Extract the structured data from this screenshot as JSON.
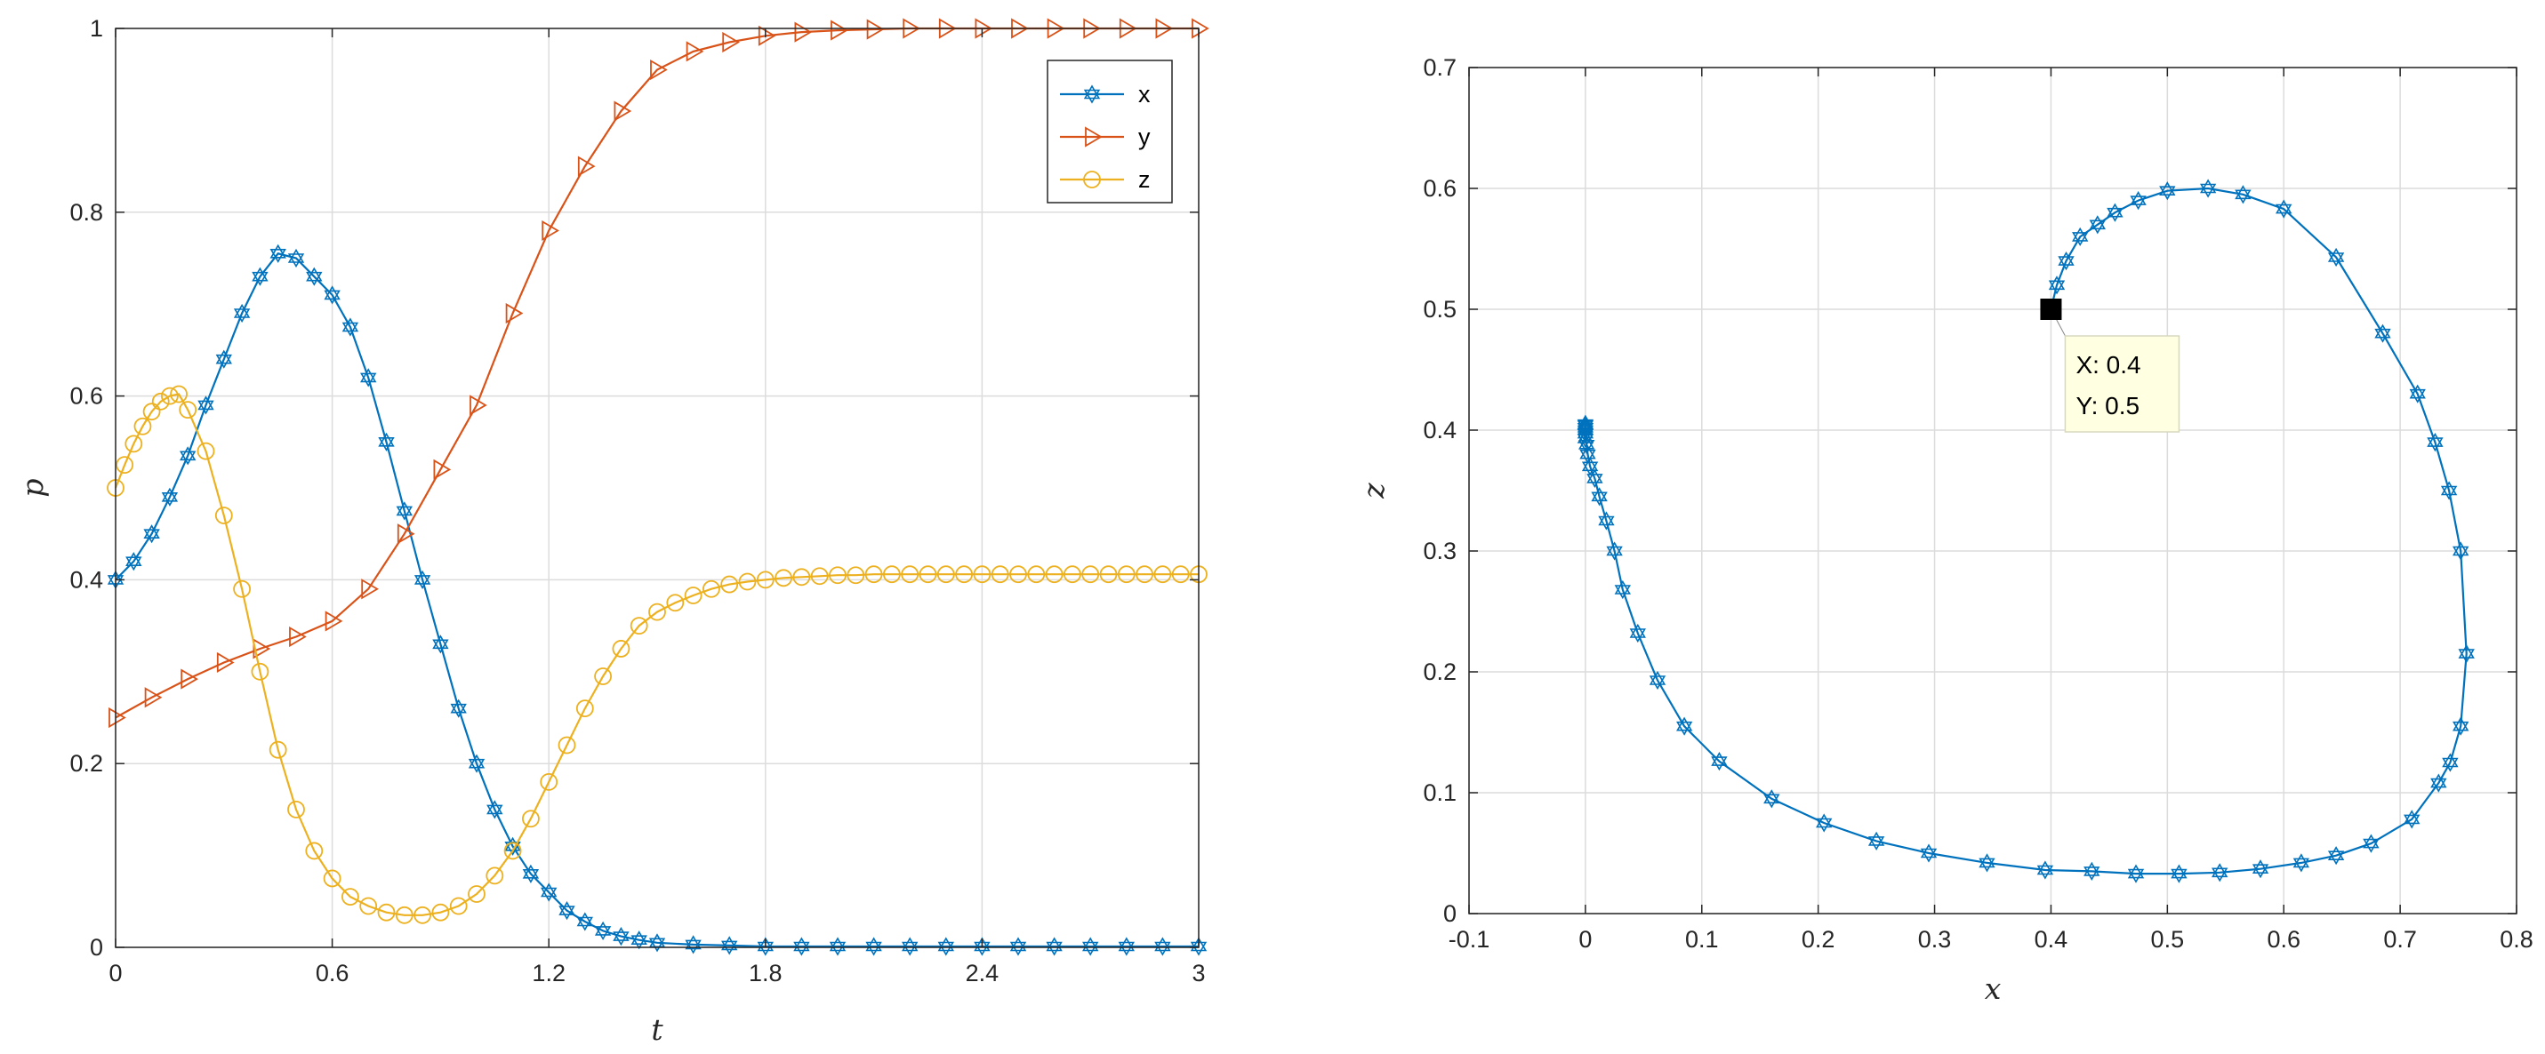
{
  "chart_data": [
    {
      "type": "line",
      "xlabel": "t",
      "ylabel": "p",
      "xlim": [
        0,
        3
      ],
      "ylim": [
        0,
        1
      ],
      "xticks": [
        "0",
        "0.6",
        "1.2",
        "1.8",
        "2.4",
        "3"
      ],
      "yticks": [
        "0",
        "0.2",
        "0.4",
        "0.6",
        "0.8",
        "1"
      ],
      "grid": true,
      "legend_position": "top-right",
      "series": [
        {
          "name": "x",
          "color": "#0072BD",
          "marker": "hexagram",
          "x": [
            0,
            0.05,
            0.1,
            0.15,
            0.2,
            0.25,
            0.3,
            0.35,
            0.4,
            0.45,
            0.5,
            0.55,
            0.6,
            0.65,
            0.7,
            0.75,
            0.8,
            0.85,
            0.9,
            0.95,
            1.0,
            1.05,
            1.1,
            1.15,
            1.2,
            1.25,
            1.3,
            1.35,
            1.4,
            1.45,
            1.5,
            1.6,
            1.7,
            1.8,
            1.9,
            2.0,
            2.1,
            2.2,
            2.3,
            2.4,
            2.5,
            2.6,
            2.7,
            2.8,
            2.9,
            3.0
          ],
          "values": [
            0.4,
            0.42,
            0.45,
            0.49,
            0.535,
            0.59,
            0.64,
            0.69,
            0.73,
            0.755,
            0.75,
            0.73,
            0.71,
            0.675,
            0.62,
            0.55,
            0.475,
            0.4,
            0.33,
            0.26,
            0.2,
            0.15,
            0.11,
            0.08,
            0.06,
            0.04,
            0.028,
            0.018,
            0.012,
            0.008,
            0.005,
            0.003,
            0.002,
            0.001,
            0.001,
            0.001,
            0.001,
            0.001,
            0.001,
            0.001,
            0.001,
            0.001,
            0.001,
            0.001,
            0.001,
            0.001
          ]
        },
        {
          "name": "y",
          "color": "#D95319",
          "marker": "triangle-right",
          "x": [
            0,
            0.1,
            0.2,
            0.3,
            0.4,
            0.5,
            0.6,
            0.7,
            0.8,
            0.9,
            1.0,
            1.1,
            1.2,
            1.3,
            1.4,
            1.5,
            1.6,
            1.7,
            1.8,
            1.9,
            2.0,
            2.1,
            2.2,
            2.3,
            2.4,
            2.5,
            2.6,
            2.7,
            2.8,
            2.9,
            3.0
          ],
          "values": [
            0.25,
            0.272,
            0.292,
            0.31,
            0.325,
            0.338,
            0.355,
            0.39,
            0.45,
            0.52,
            0.59,
            0.69,
            0.78,
            0.85,
            0.91,
            0.955,
            0.975,
            0.985,
            0.992,
            0.996,
            0.998,
            0.999,
            1.0,
            1.0,
            1.0,
            1.0,
            1.0,
            1.0,
            1.0,
            1.0,
            1.0
          ]
        },
        {
          "name": "z",
          "color": "#EDB120",
          "marker": "circle",
          "x": [
            0,
            0.025,
            0.05,
            0.075,
            0.1,
            0.125,
            0.15,
            0.175,
            0.2,
            0.25,
            0.3,
            0.35,
            0.4,
            0.45,
            0.5,
            0.55,
            0.6,
            0.65,
            0.7,
            0.75,
            0.8,
            0.85,
            0.9,
            0.95,
            1.0,
            1.05,
            1.1,
            1.15,
            1.2,
            1.25,
            1.3,
            1.35,
            1.4,
            1.45,
            1.5,
            1.55,
            1.6,
            1.65,
            1.7,
            1.75,
            1.8,
            1.85,
            1.9,
            1.95,
            2.0,
            2.05,
            2.1,
            2.15,
            2.2,
            2.25,
            2.3,
            2.35,
            2.4,
            2.45,
            2.5,
            2.55,
            2.6,
            2.65,
            2.7,
            2.75,
            2.8,
            2.85,
            2.9,
            2.95,
            3.0
          ],
          "values": [
            0.5,
            0.525,
            0.548,
            0.567,
            0.583,
            0.594,
            0.6,
            0.602,
            0.585,
            0.54,
            0.47,
            0.39,
            0.3,
            0.215,
            0.15,
            0.105,
            0.075,
            0.055,
            0.045,
            0.038,
            0.035,
            0.035,
            0.038,
            0.045,
            0.058,
            0.078,
            0.105,
            0.14,
            0.18,
            0.22,
            0.26,
            0.295,
            0.325,
            0.35,
            0.365,
            0.375,
            0.383,
            0.39,
            0.395,
            0.398,
            0.4,
            0.402,
            0.403,
            0.404,
            0.405,
            0.405,
            0.406,
            0.406,
            0.406,
            0.406,
            0.406,
            0.406,
            0.406,
            0.406,
            0.406,
            0.406,
            0.406,
            0.406,
            0.406,
            0.406,
            0.406,
            0.406,
            0.406,
            0.406,
            0.406
          ]
        }
      ]
    },
    {
      "type": "line",
      "xlabel": "x",
      "ylabel": "z",
      "xlim": [
        -0.1,
        0.8
      ],
      "ylim": [
        0,
        0.7
      ],
      "xticks": [
        "-0.1",
        "0",
        "0.1",
        "0.2",
        "0.3",
        "0.4",
        "0.5",
        "0.6",
        "0.7",
        "0.8"
      ],
      "yticks": [
        "0",
        "0.1",
        "0.2",
        "0.3",
        "0.4",
        "0.5",
        "0.6",
        "0.7"
      ],
      "grid": true,
      "series": [
        {
          "color": "#0072BD",
          "marker": "hexagram",
          "x": [
            0.4,
            0.405,
            0.413,
            0.425,
            0.44,
            0.455,
            0.475,
            0.5,
            0.535,
            0.565,
            0.6,
            0.645,
            0.685,
            0.715,
            0.73,
            0.742,
            0.752,
            0.757,
            0.752,
            0.743,
            0.733,
            0.71,
            0.675,
            0.645,
            0.615,
            0.58,
            0.545,
            0.51,
            0.473,
            0.435,
            0.395,
            0.345,
            0.295,
            0.25,
            0.205,
            0.16,
            0.115,
            0.085,
            0.062,
            0.045,
            0.032,
            0.025,
            0.018,
            0.012,
            0.008,
            0.004,
            0.002,
            0.001,
            0.0,
            0.0,
            0.0,
            0.0,
            0.0,
            0.0
          ],
          "values": [
            0.5,
            0.52,
            0.54,
            0.56,
            0.57,
            0.58,
            0.59,
            0.598,
            0.6,
            0.595,
            0.583,
            0.543,
            0.48,
            0.43,
            0.39,
            0.35,
            0.3,
            0.215,
            0.155,
            0.125,
            0.108,
            0.078,
            0.058,
            0.048,
            0.042,
            0.037,
            0.034,
            0.033,
            0.033,
            0.035,
            0.036,
            0.042,
            0.05,
            0.06,
            0.075,
            0.095,
            0.126,
            0.155,
            0.193,
            0.232,
            0.268,
            0.3,
            0.325,
            0.345,
            0.36,
            0.37,
            0.38,
            0.388,
            0.393,
            0.397,
            0.4,
            0.402,
            0.404,
            0.405
          ]
        }
      ],
      "datatip": {
        "x_label": "X: 0.4",
        "y_label": "Y: 0.5",
        "x": 0.4,
        "y": 0.5
      }
    }
  ]
}
